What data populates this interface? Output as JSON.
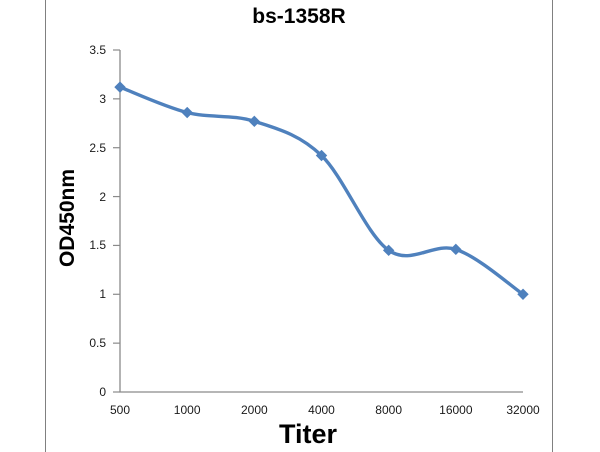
{
  "chart_data": {
    "type": "line",
    "title": "bs-1358R",
    "xlabel": "Titer",
    "ylabel": "OD450nm",
    "categories": [
      "500",
      "1000",
      "2000",
      "4000",
      "8000",
      "16000",
      "32000"
    ],
    "series": [
      {
        "name": "OD450nm",
        "values": [
          3.12,
          2.86,
          2.77,
          2.42,
          1.45,
          1.46,
          1.0
        ]
      }
    ],
    "ylim": [
      0,
      3.5
    ],
    "ytick_step": 0.5,
    "ytick_labels": [
      "0",
      "0.5",
      "1",
      "1.5",
      "2",
      "2.5",
      "3",
      "3.5"
    ],
    "smooth": true,
    "marker": "diamond",
    "grid": false,
    "legend": "none",
    "line_color": "#4F81BD",
    "marker_color": "#4F81BD",
    "axis_color": "#8a8a8a",
    "frame_color": "#808080",
    "text_color": "#000000"
  }
}
